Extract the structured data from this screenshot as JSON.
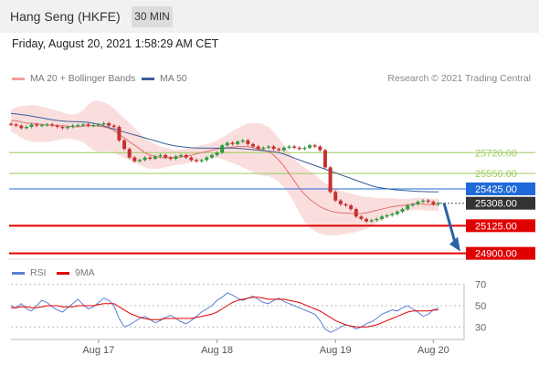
{
  "header": {
    "title": "Hang Seng (HKFE)",
    "interval": "30 MIN"
  },
  "timestamp": "Friday, August 20, 2021 1:58:29 AM CET",
  "copyright": "Research © 2021 Trading Central",
  "colors": {
    "bollinger": "#f2a0a0",
    "ma50": "#3a5f9c",
    "support": "#e00000",
    "resistance": "#9ccc5c",
    "pivot": "#1f6ad8",
    "last": "#333333",
    "rsi": "#5b7fd4",
    "rsi_ma": "#e00000",
    "arrow": "#2b62a8"
  },
  "chart_data": [
    {
      "type": "line",
      "panel": "price",
      "series": [
        {
          "name": "MA 20 + Bollinger Bands",
          "color": "#f2a0a0"
        },
        {
          "name": "MA 50",
          "color": "#3a5f9c"
        }
      ],
      "ylim": [
        24860,
        26220
      ],
      "x_ticks": [
        "Aug 17",
        "Aug 18",
        "Aug 19",
        "Aug 20"
      ],
      "levels": [
        {
          "value": 25720.0,
          "label": "25720.00",
          "kind": "resistance"
        },
        {
          "value": 25550.0,
          "label": "25550.00",
          "kind": "resistance"
        },
        {
          "value": 25425.0,
          "label": "25425.00",
          "kind": "pivot"
        },
        {
          "value": 25308.0,
          "label": "25308.00",
          "kind": "last"
        },
        {
          "value": 25125.0,
          "label": "25125.00",
          "kind": "support"
        },
        {
          "value": 24900.0,
          "label": "24900.00",
          "kind": "support"
        }
      ],
      "close": [
        25950,
        25940,
        25920,
        25930,
        25950,
        25940,
        25945,
        25950,
        25940,
        25930,
        25920,
        25930,
        25940,
        25945,
        25950,
        25940,
        25945,
        25950,
        25960,
        25940,
        25930,
        25820,
        25750,
        25680,
        25650,
        25660,
        25680,
        25670,
        25690,
        25700,
        25680,
        25670,
        25690,
        25700,
        25680,
        25660,
        25650,
        25660,
        25680,
        25700,
        25720,
        25780,
        25800,
        25790,
        25810,
        25820,
        25790,
        25770,
        25750,
        25760,
        25770,
        25750,
        25740,
        25760,
        25770,
        25760,
        25750,
        25760,
        25780,
        25770,
        25740,
        25600,
        25400,
        25330,
        25300,
        25290,
        25260,
        25200,
        25180,
        25160,
        25170,
        25180,
        25200,
        25210,
        25220,
        25240,
        25260,
        25290,
        25300,
        25320,
        25330,
        25320,
        25300,
        25310
      ],
      "ma20": [
        25980,
        25980,
        25970,
        25960,
        25960,
        25955,
        25950,
        25945,
        25945,
        25940,
        25940,
        25935,
        25930,
        25930,
        25935,
        25940,
        25940,
        25935,
        25930,
        25920,
        25900,
        25870,
        25840,
        25810,
        25780,
        25750,
        25720,
        25700,
        25690,
        25680,
        25680,
        25680,
        25680,
        25685,
        25690,
        25700,
        25710,
        25720,
        25730,
        25740,
        25750,
        25755,
        25760,
        25765,
        25770,
        25770,
        25770,
        25760,
        25750,
        25740,
        25730,
        25700,
        25660,
        25610,
        25550,
        25490,
        25430,
        25380,
        25340,
        25310,
        25280,
        25260,
        25245,
        25235,
        25230,
        25228,
        25226,
        25224,
        25225,
        25230,
        25240,
        25250,
        25260,
        25270,
        25280,
        25285,
        25290,
        25295,
        25300,
        25305,
        25300,
        25298,
        25296,
        25295
      ],
      "ma50": [
        26040,
        26035,
        26030,
        26025,
        26018,
        26010,
        26002,
        25995,
        25988,
        25982,
        25978,
        25975,
        25973,
        25972,
        25970,
        25966,
        25960,
        25950,
        25938,
        25925,
        25912,
        25900,
        25888,
        25876,
        25864,
        25852,
        25840,
        25828,
        25816,
        25804,
        25792,
        25782,
        25774,
        25768,
        25764,
        25760,
        25758,
        25757,
        25756,
        25756,
        25756,
        25757,
        25758,
        25757,
        25755,
        25752,
        25748,
        25744,
        25740,
        25736,
        25732,
        25728,
        25720,
        25708,
        25692,
        25676,
        25660,
        25645,
        25630,
        25615,
        25600,
        25585,
        25570,
        25555,
        25540,
        25525,
        25510,
        25495,
        25480,
        25465,
        25450,
        25440,
        25432,
        25426,
        25420,
        25416,
        25413,
        25410,
        25407,
        25405,
        25403,
        25402,
        25401,
        25400
      ],
      "bb_width": [
        90,
        110,
        130,
        140,
        150,
        150,
        145,
        140,
        130,
        120,
        110,
        100,
        100,
        110,
        130,
        170,
        200,
        210,
        200,
        190,
        180,
        170,
        160,
        150,
        140,
        130,
        120,
        110,
        100,
        90,
        80,
        70,
        60,
        60,
        60,
        60,
        60,
        60,
        60,
        60,
        70,
        90,
        110,
        130,
        150,
        170,
        190,
        200,
        210,
        210,
        200,
        190,
        180,
        170,
        170,
        180,
        200,
        220,
        230,
        230,
        220,
        210,
        200,
        190,
        180,
        170,
        160,
        150,
        140,
        130,
        120,
        100,
        90,
        80,
        70,
        60,
        50,
        50,
        50,
        50,
        50,
        50,
        50,
        50
      ]
    },
    {
      "type": "line",
      "panel": "rsi",
      "series": [
        {
          "name": "RSI",
          "color": "#5b7fd4"
        },
        {
          "name": "9MA",
          "color": "#e00000"
        }
      ],
      "ylim": [
        20,
        80
      ],
      "y_ticks": [
        70,
        50,
        30
      ],
      "rsi": [
        50,
        48,
        52,
        47,
        45,
        50,
        55,
        53,
        49,
        46,
        44,
        48,
        52,
        56,
        51,
        47,
        49,
        53,
        57,
        55,
        50,
        38,
        30,
        32,
        35,
        38,
        40,
        37,
        34,
        36,
        39,
        41,
        38,
        35,
        33,
        36,
        40,
        44,
        47,
        50,
        55,
        58,
        62,
        60,
        57,
        55,
        57,
        59,
        56,
        53,
        52,
        55,
        57,
        54,
        52,
        50,
        48,
        46,
        44,
        42,
        36,
        28,
        25,
        27,
        30,
        32,
        31,
        28,
        30,
        33,
        35,
        38,
        42,
        44,
        46,
        45,
        48,
        50,
        47,
        44,
        40,
        42,
        46,
        48
      ],
      "rsi_ma": [
        48,
        48,
        49,
        49,
        48,
        48,
        49,
        50,
        50,
        50,
        49,
        49,
        49,
        50,
        50,
        50,
        50,
        51,
        52,
        52,
        52,
        49,
        46,
        43,
        41,
        39,
        38,
        37,
        37,
        37,
        38,
        38,
        38,
        38,
        38,
        38,
        39,
        40,
        41,
        42,
        44,
        47,
        50,
        53,
        55,
        56,
        57,
        58,
        58,
        57,
        56,
        56,
        56,
        56,
        55,
        54,
        53,
        51,
        49,
        47,
        45,
        42,
        39,
        36,
        34,
        32,
        31,
        30,
        30,
        30,
        31,
        32,
        34,
        36,
        38,
        40,
        42,
        44,
        45,
        45,
        45,
        45,
        46,
        46
      ]
    }
  ]
}
